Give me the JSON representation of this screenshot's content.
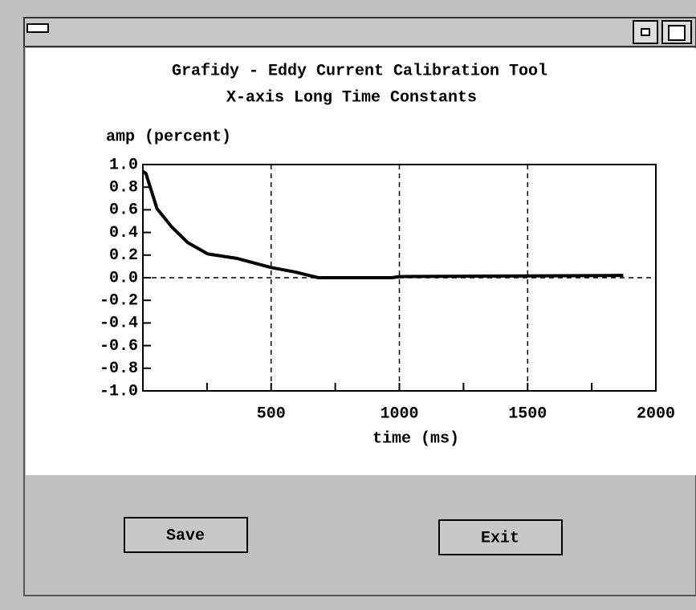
{
  "chart_data": {
    "type": "line",
    "title": "Grafidy - Eddy Current Calibration Tool",
    "subtitle": "X-axis Long Time Constants",
    "ylabel": "amp (percent)",
    "xlabel": "time (ms)",
    "x": [
      0,
      12,
      55,
      112,
      175,
      253,
      368,
      500,
      594,
      684,
      970,
      1000,
      1873
    ],
    "values": [
      0.94,
      0.92,
      0.61,
      0.45,
      0.31,
      0.21,
      0.17,
      0.09,
      0.05,
      0.0,
      0.0,
      0.01,
      0.02
    ],
    "color": "#000000",
    "xlim": [
      0,
      2000
    ],
    "xticks": [
      500,
      1000,
      1500,
      2000
    ],
    "xminor_ticks": [
      250,
      750,
      1250,
      1750
    ],
    "ylim": [
      -1,
      1
    ],
    "yticks": [
      {
        "value": 1,
        "label": "1.0"
      },
      0.8,
      0.6,
      0.4,
      0.2,
      {
        "value": 0,
        "label": "0.0"
      },
      -0.2,
      -0.4,
      -0.6,
      -0.8,
      {
        "value": -1,
        "label": "-1.0"
      }
    ],
    "grid": "x",
    "zero_line": true
  },
  "buttons": [
    "Save",
    "Exit"
  ]
}
